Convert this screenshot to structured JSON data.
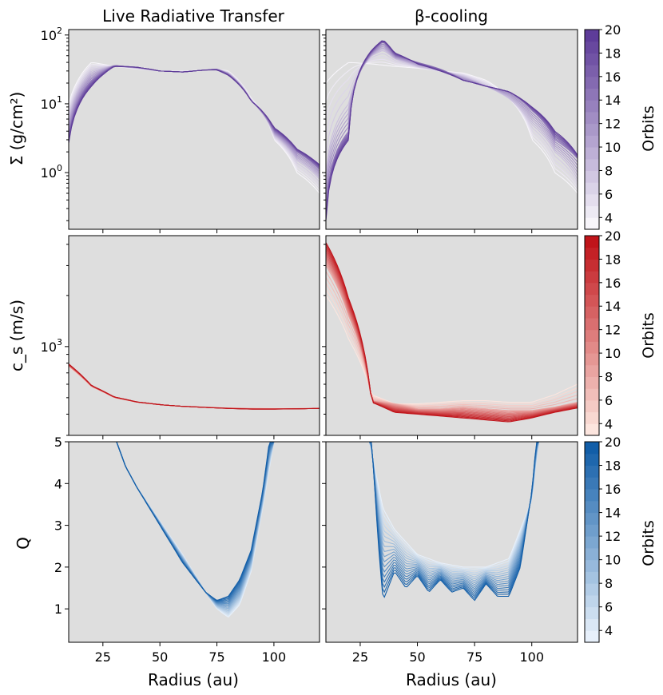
{
  "figure": {
    "col_titles": [
      "Live Radiative Transfer",
      "β-cooling"
    ],
    "xlabel": "Radius (au)",
    "ylabels": [
      "Σ (g/cm²)",
      "c_s (m/s)",
      "Q"
    ]
  },
  "colorbars": [
    {
      "label": "Orbits",
      "cmap": "purples",
      "ticks": [
        "4",
        "6",
        "8",
        "10",
        "12",
        "14",
        "16",
        "18",
        "20"
      ],
      "range": [
        3,
        20
      ]
    },
    {
      "label": "Orbits",
      "cmap": "reds",
      "ticks": [
        "4",
        "6",
        "8",
        "10",
        "12",
        "14",
        "16",
        "18",
        "20"
      ],
      "range": [
        3,
        20
      ]
    },
    {
      "label": "Orbits",
      "cmap": "blues",
      "ticks": [
        "4",
        "6",
        "8",
        "10",
        "12",
        "14",
        "16",
        "18",
        "20"
      ],
      "range": [
        3,
        20
      ]
    }
  ],
  "chart_data": [
    {
      "type": "line",
      "panel": "sigma-live",
      "title": "Live Radiative Transfer",
      "xlabel": "",
      "ylabel": "Σ (g/cm²)",
      "xlim": [
        10,
        120
      ],
      "ylim": [
        0.15,
        120
      ],
      "yscale": "log",
      "x_ticks": [
        25,
        50,
        75,
        100
      ],
      "y_ticks": [
        "10^0",
        "10^1",
        "10^2"
      ],
      "series": [
        {
          "orbit": 3,
          "x": [
            10,
            20,
            30,
            40,
            50,
            60,
            70,
            75,
            80,
            90,
            100,
            110,
            120
          ],
          "y": [
            10,
            40,
            35,
            32,
            30,
            30,
            31,
            32,
            30,
            12,
            3,
            1,
            0.5
          ]
        },
        {
          "orbit": 8,
          "x": [
            10,
            20,
            30,
            40,
            50,
            60,
            70,
            75,
            80,
            90,
            100,
            110,
            120
          ],
          "y": [
            6,
            30,
            36,
            33,
            30,
            29,
            31,
            32,
            28,
            11,
            3.5,
            1.5,
            0.8
          ]
        },
        {
          "orbit": 14,
          "x": [
            10,
            20,
            30,
            40,
            50,
            60,
            70,
            75,
            80,
            90,
            100,
            110,
            120
          ],
          "y": [
            3.5,
            22,
            36,
            34,
            30,
            29,
            31,
            32,
            27,
            11,
            4,
            2,
            1.1
          ]
        },
        {
          "orbit": 20,
          "x": [
            10,
            20,
            30,
            40,
            50,
            60,
            70,
            75,
            80,
            90,
            100,
            110,
            120
          ],
          "y": [
            2.7,
            18,
            35,
            34,
            30,
            29,
            31,
            31,
            26,
            11,
            4.5,
            2.2,
            1.3
          ]
        }
      ]
    },
    {
      "type": "line",
      "panel": "sigma-beta",
      "title": "β-cooling",
      "xlabel": "",
      "ylabel": "",
      "xlim": [
        10,
        120
      ],
      "ylim": [
        0.15,
        120
      ],
      "yscale": "log",
      "x_ticks": [
        25,
        50,
        75,
        100
      ],
      "series": [
        {
          "orbit": 3,
          "x": [
            10,
            20,
            30,
            40,
            50,
            60,
            70,
            80,
            90,
            100,
            110,
            120
          ],
          "y": [
            20,
            40,
            38,
            35,
            33,
            30,
            28,
            22,
            12,
            3,
            1,
            0.5
          ]
        },
        {
          "orbit": 8,
          "x": [
            10,
            20,
            30,
            35,
            40,
            50,
            60,
            70,
            80,
            90,
            100,
            110,
            120
          ],
          "y": [
            1,
            10,
            50,
            60,
            45,
            35,
            30,
            25,
            18,
            12,
            5,
            2,
            0.8
          ]
        },
        {
          "orbit": 14,
          "x": [
            10,
            20,
            30,
            35,
            40,
            50,
            60,
            70,
            80,
            90,
            100,
            110,
            120
          ],
          "y": [
            0.3,
            4,
            55,
            80,
            50,
            40,
            32,
            22,
            18,
            15,
            8,
            3,
            1.6
          ]
        },
        {
          "orbit": 20,
          "x": [
            10,
            20,
            30,
            35,
            40,
            50,
            60,
            70,
            80,
            90,
            100,
            110,
            120
          ],
          "y": [
            0.2,
            3,
            60,
            85,
            55,
            38,
            30,
            22,
            18,
            15,
            9,
            4,
            1.8
          ]
        }
      ]
    },
    {
      "type": "line",
      "panel": "cs-live",
      "title": "",
      "xlabel": "",
      "ylabel": "c_s (m/s)",
      "xlim": [
        10,
        120
      ],
      "ylim": [
        300,
        4500
      ],
      "yscale": "log",
      "x_ticks": [
        25,
        50,
        75,
        100
      ],
      "y_ticks": [
        "10^3"
      ],
      "series": [
        {
          "orbit": 3,
          "x": [
            10,
            20,
            30,
            40,
            50,
            60,
            70,
            80,
            90,
            100,
            110,
            120
          ],
          "y": [
            760,
            580,
            500,
            470,
            455,
            445,
            440,
            435,
            433,
            432,
            432,
            432
          ]
        },
        {
          "orbit": 20,
          "x": [
            10,
            20,
            30,
            40,
            50,
            60,
            70,
            80,
            90,
            100,
            110,
            120
          ],
          "y": [
            790,
            590,
            505,
            472,
            455,
            445,
            438,
            432,
            428,
            428,
            430,
            432
          ]
        }
      ]
    },
    {
      "type": "line",
      "panel": "cs-beta",
      "title": "",
      "xlabel": "",
      "ylabel": "",
      "xlim": [
        10,
        120
      ],
      "ylim": [
        300,
        4500
      ],
      "yscale": "log",
      "x_ticks": [
        25,
        50,
        75,
        100
      ],
      "series": [
        {
          "orbit": 3,
          "x": [
            10,
            20,
            30,
            40,
            50,
            60,
            70,
            80,
            90,
            100,
            110,
            120
          ],
          "y": [
            2000,
            1100,
            520,
            460,
            460,
            470,
            480,
            480,
            470,
            470,
            520,
            600
          ]
        },
        {
          "orbit": 8,
          "x": [
            10,
            20,
            30,
            40,
            50,
            60,
            70,
            80,
            90,
            100,
            110,
            120
          ],
          "y": [
            3000,
            1500,
            480,
            460,
            430,
            430,
            440,
            430,
            420,
            420,
            440,
            470
          ]
        },
        {
          "orbit": 20,
          "x": [
            10,
            20,
            30,
            40,
            50,
            60,
            70,
            80,
            90,
            100,
            110,
            120
          ],
          "y": [
            4100,
            1900,
            470,
            410,
            400,
            390,
            380,
            370,
            360,
            380,
            410,
            435
          ]
        }
      ]
    },
    {
      "type": "line",
      "panel": "q-live",
      "title": "",
      "xlabel": "Radius (au)",
      "ylabel": "Q",
      "xlim": [
        10,
        120
      ],
      "ylim": [
        0.2,
        5
      ],
      "yscale": "linear",
      "x_ticks": [
        25,
        50,
        75,
        100
      ],
      "y_ticks": [
        1,
        2,
        3,
        4,
        5
      ],
      "series": [
        {
          "orbit": 3,
          "x": [
            31,
            35,
            40,
            50,
            60,
            70,
            75,
            80,
            85,
            90,
            95,
            100
          ],
          "y": [
            5,
            4.4,
            3.9,
            3.1,
            2.3,
            1.4,
            1.0,
            0.8,
            1.1,
            1.9,
            3.4,
            5
          ]
        },
        {
          "orbit": 20,
          "x": [
            31,
            35,
            40,
            50,
            60,
            70,
            75,
            80,
            85,
            90,
            95,
            98
          ],
          "y": [
            5,
            4.4,
            3.9,
            3.0,
            2.1,
            1.4,
            1.2,
            1.3,
            1.7,
            2.4,
            3.8,
            5
          ]
        }
      ]
    },
    {
      "type": "line",
      "panel": "q-beta",
      "title": "",
      "xlabel": "Radius (au)",
      "ylabel": "",
      "xlim": [
        10,
        120
      ],
      "ylim": [
        0.2,
        5
      ],
      "yscale": "linear",
      "x_ticks": [
        25,
        50,
        75,
        100
      ],
      "y_ticks": [
        1,
        2,
        3,
        4,
        5
      ],
      "series": [
        {
          "orbit": 3,
          "x": [
            29,
            35,
            40,
            50,
            60,
            70,
            80,
            90,
            100,
            103
          ],
          "y": [
            5,
            3.4,
            2.9,
            2.3,
            2.1,
            2.0,
            2.0,
            2.2,
            3.6,
            5
          ]
        },
        {
          "orbit": 20,
          "x": [
            30,
            33,
            35,
            40,
            45,
            50,
            55,
            60,
            65,
            70,
            75,
            80,
            85,
            90,
            95,
            100,
            102
          ],
          "y": [
            5,
            2.5,
            1.2,
            1.9,
            1.5,
            1.8,
            1.4,
            1.7,
            1.4,
            1.5,
            1.2,
            1.6,
            1.3,
            1.3,
            2.0,
            3.8,
            5
          ]
        }
      ]
    }
  ]
}
